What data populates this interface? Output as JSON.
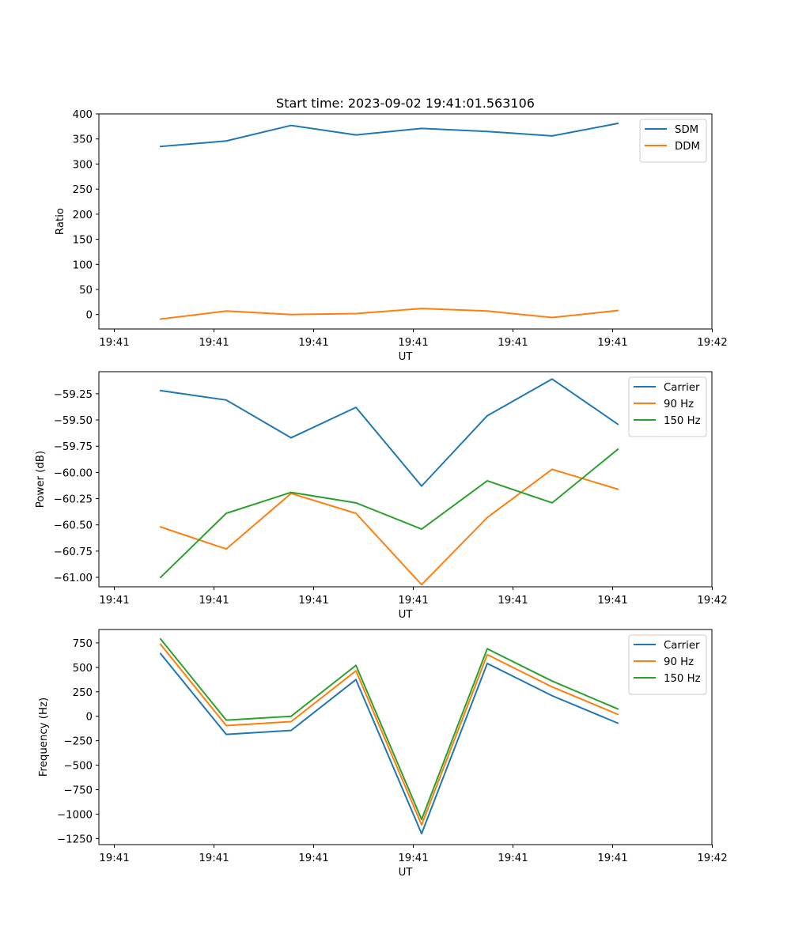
{
  "figure": {
    "title": "Start time: 2023-09-02 19:41:01.563106"
  },
  "chart_data": [
    {
      "type": "line",
      "xlabel": "UT",
      "ylabel": "Ratio",
      "x_tick_labels": [
        "19:41",
        "19:41",
        "19:41",
        "19:41",
        "19:41",
        "19:41",
        "19:42"
      ],
      "y_ticks": [
        0,
        50,
        100,
        150,
        200,
        250,
        300,
        350,
        400
      ],
      "ylim": [
        -28.8,
        400
      ],
      "legend_position": "upper-right",
      "series": [
        {
          "name": "SDM",
          "color": "#1f77b4",
          "values": [
            335,
            346,
            377,
            358,
            371,
            365,
            356,
            381
          ]
        },
        {
          "name": "DDM",
          "color": "#ff7f0e",
          "values": [
            -9,
            7,
            0,
            2,
            12,
            7,
            -6,
            8
          ]
        }
      ]
    },
    {
      "type": "line",
      "xlabel": "UT",
      "ylabel": "Power (dB)",
      "x_tick_labels": [
        "19:41",
        "19:41",
        "19:41",
        "19:41",
        "19:41",
        "19:41",
        "19:42"
      ],
      "y_ticks": [
        -61.0,
        -60.75,
        -60.5,
        -60.25,
        -60.0,
        -59.75,
        -59.5,
        -59.25
      ],
      "y_tick_labels": [
        "−61.00",
        "−60.75",
        "−60.50",
        "−60.25",
        "−60.00",
        "−59.75",
        "−59.50",
        "−59.25"
      ],
      "ylim": [
        -61.09,
        -59.04
      ],
      "legend_position": "upper-right",
      "series": [
        {
          "name": "Carrier",
          "color": "#1f77b4",
          "values": [
            -59.22,
            -59.31,
            -59.67,
            -59.38,
            -60.13,
            -59.46,
            -59.11,
            -59.54
          ]
        },
        {
          "name": "90 Hz",
          "color": "#ff7f0e",
          "values": [
            -60.52,
            -60.73,
            -60.2,
            -60.39,
            -61.07,
            -60.43,
            -59.97,
            -60.16
          ]
        },
        {
          "name": "150 Hz",
          "color": "#2ca02c",
          "values": [
            -61.0,
            -60.39,
            -60.19,
            -60.29,
            -60.54,
            -60.08,
            -60.29,
            -59.78
          ]
        }
      ]
    },
    {
      "type": "line",
      "xlabel": "UT",
      "ylabel": "Frequency (Hz)",
      "x_tick_labels": [
        "19:41",
        "19:41",
        "19:41",
        "19:41",
        "19:41",
        "19:41",
        "19:42"
      ],
      "y_ticks": [
        -1250,
        -1000,
        -750,
        -500,
        -250,
        0,
        250,
        500,
        750
      ],
      "y_tick_labels": [
        "−1250",
        "−1000",
        "−750",
        "−500",
        "−250",
        "0",
        "250",
        "500",
        "750"
      ],
      "ylim": [
        -1312,
        887
      ],
      "legend_position": "upper-right",
      "series": [
        {
          "name": "Carrier",
          "color": "#1f77b4",
          "values": [
            640,
            -185,
            -145,
            375,
            -1200,
            540,
            210,
            -70
          ]
        },
        {
          "name": "90 Hz",
          "color": "#ff7f0e",
          "values": [
            735,
            -95,
            -55,
            465,
            -1110,
            630,
            300,
            20
          ]
        },
        {
          "name": "150 Hz",
          "color": "#2ca02c",
          "values": [
            790,
            -40,
            0,
            520,
            -1055,
            690,
            360,
            75
          ]
        }
      ]
    }
  ]
}
